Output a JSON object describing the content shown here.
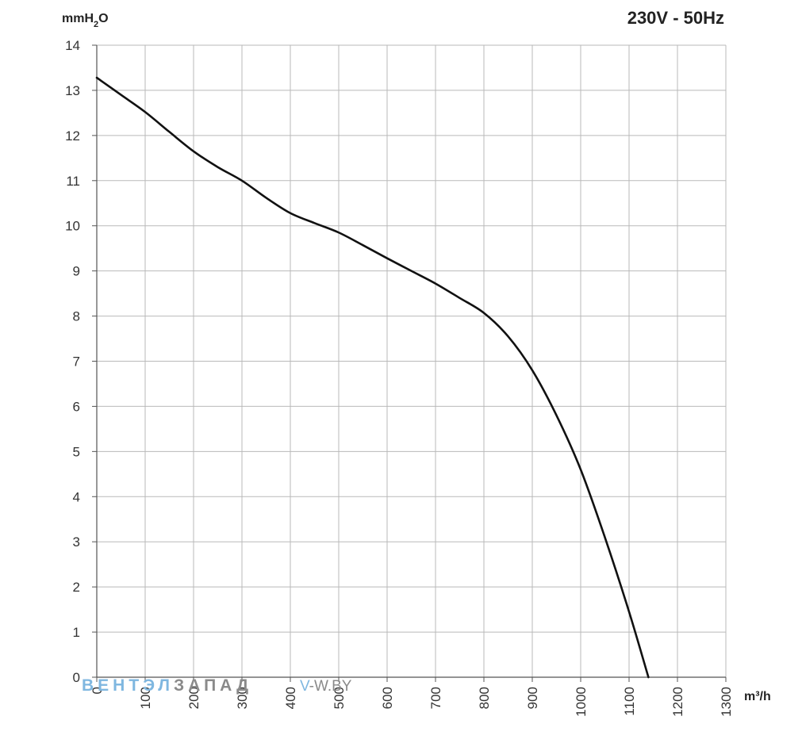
{
  "chart_data": {
    "type": "line",
    "title": "230V - 50Hz",
    "ylabel": "mmH2O",
    "xlabel": "m³/h",
    "xlim": [
      0,
      1300
    ],
    "ylim": [
      0,
      14
    ],
    "x_ticks": [
      "0",
      "100",
      "200",
      "300",
      "400",
      "500",
      "600",
      "700",
      "800",
      "900",
      "1000",
      "1100",
      "1200",
      "1300"
    ],
    "y_ticks": [
      "0",
      "1",
      "2",
      "3",
      "4",
      "5",
      "6",
      "7",
      "8",
      "9",
      "10",
      "11",
      "12",
      "13",
      "14"
    ],
    "grid": true,
    "series": [
      {
        "color": "#111111",
        "x": [
          0,
          50,
          100,
          150,
          200,
          250,
          300,
          350,
          400,
          450,
          500,
          550,
          600,
          650,
          700,
          750,
          800,
          850,
          900,
          950,
          1000,
          1050,
          1100,
          1140
        ],
        "y": [
          13.28,
          12.9,
          12.52,
          12.08,
          11.65,
          11.3,
          11.0,
          10.62,
          10.28,
          10.06,
          9.85,
          9.57,
          9.28,
          9.0,
          8.72,
          8.4,
          8.07,
          7.55,
          6.8,
          5.8,
          4.6,
          3.1,
          1.45,
          0.0
        ]
      }
    ]
  },
  "header": {
    "y_unit_main": "mmH",
    "y_unit_sub": "2",
    "y_unit_tail": "O",
    "title": "230V - 50Hz",
    "x_unit": "m³/h"
  },
  "watermark": {
    "part1": "ВЕНТЭЛ",
    "part2": "ЗАПАД",
    "part3_v": "V",
    "part3_rest": "-W.BY",
    "color1": "#7fb7e0",
    "color2": "#8a8a8a"
  }
}
